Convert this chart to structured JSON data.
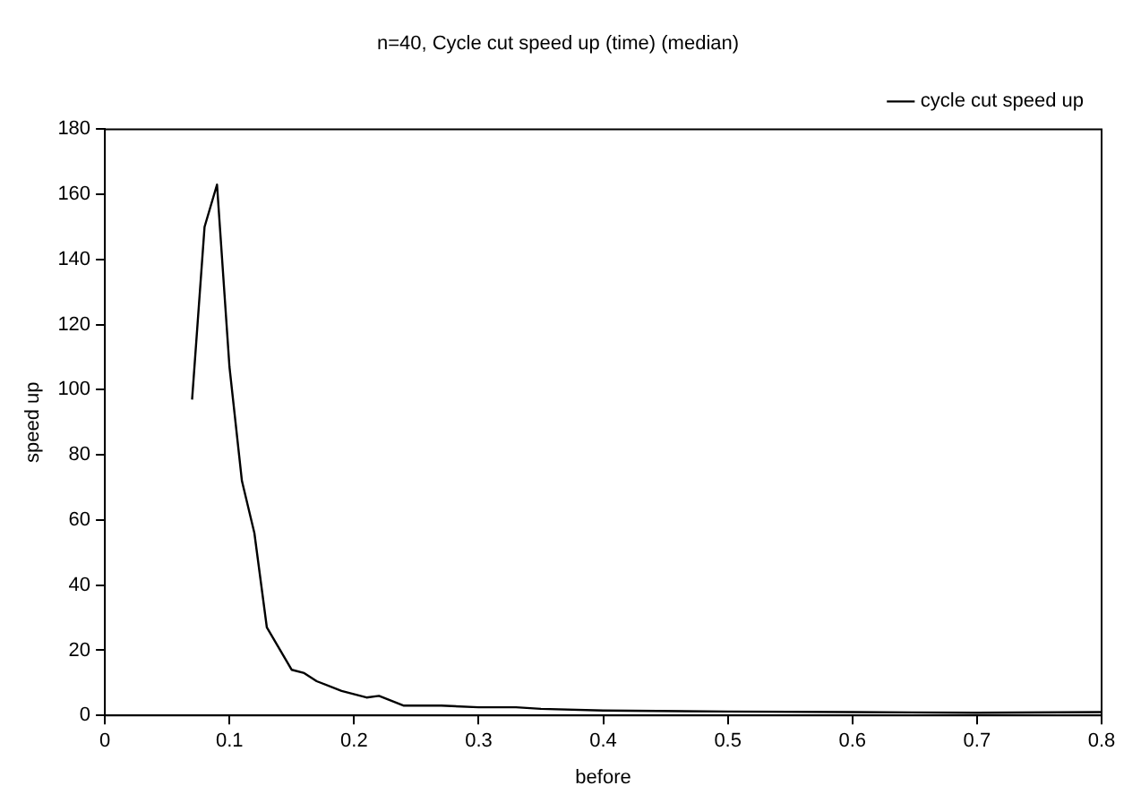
{
  "chart_data": {
    "type": "line",
    "title": "n=40, Cycle cut speed up (time) (median)",
    "xlabel": "before",
    "ylabel": "speed up",
    "x": [
      0.07,
      0.08,
      0.09,
      0.1,
      0.11,
      0.12,
      0.13,
      0.15,
      0.16,
      0.17,
      0.19,
      0.21,
      0.22,
      0.24,
      0.27,
      0.3,
      0.33,
      0.35,
      0.4,
      0.5,
      0.6,
      0.7,
      0.8
    ],
    "series": [
      {
        "name": "cycle cut speed up",
        "color": "#000000",
        "values": [
          97,
          150,
          163,
          107,
          72,
          56,
          27,
          14,
          13,
          10.5,
          7.5,
          5.5,
          6,
          3,
          3,
          2.5,
          2.5,
          2,
          1.5,
          1.2,
          1,
          0.8,
          1
        ]
      }
    ],
    "xlim": [
      0,
      0.8
    ],
    "xticks": [
      0,
      0.1,
      0.2,
      0.3,
      0.4,
      0.5,
      0.6,
      0.7,
      0.8
    ],
    "ylim": [
      0,
      180
    ],
    "yticks": [
      0,
      20,
      40,
      60,
      80,
      100,
      120,
      140,
      160,
      180
    ],
    "grid": false,
    "legend": "top right",
    "marker": "none",
    "line_style": "solid"
  }
}
